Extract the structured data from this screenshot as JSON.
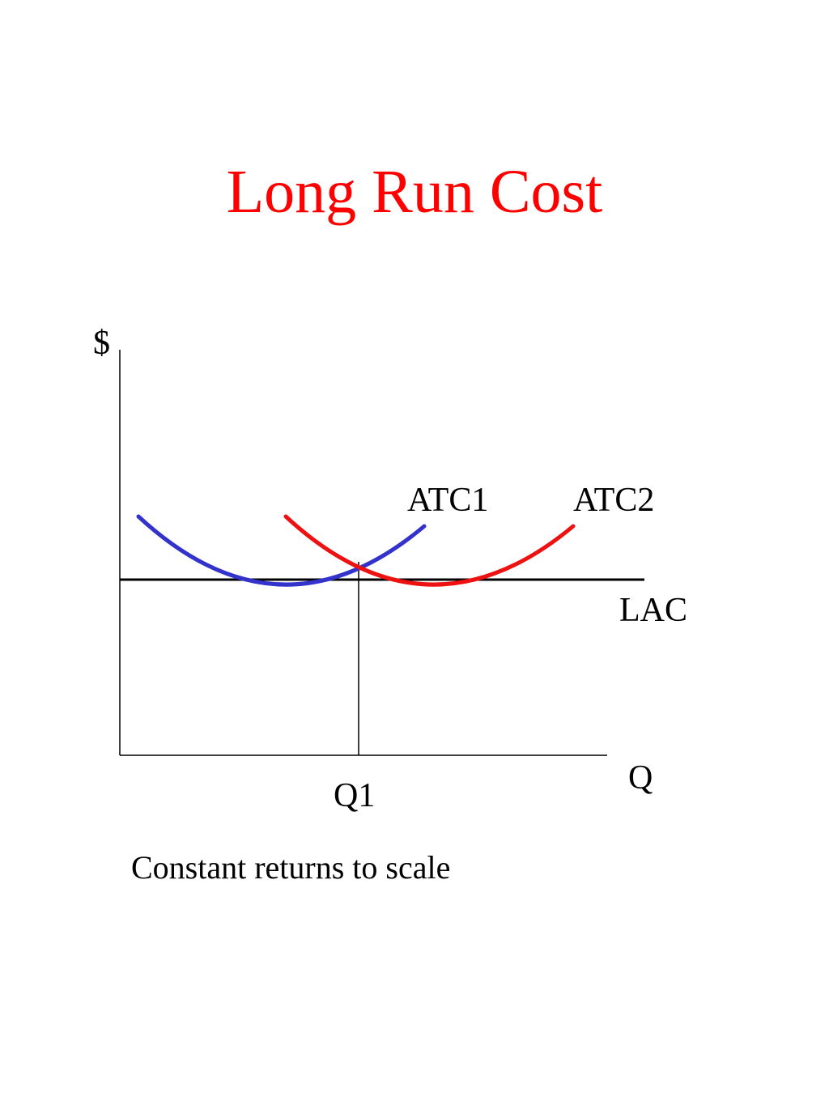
{
  "title": "Long Run Cost",
  "caption": "Constant returns to scale",
  "colors": {
    "title": "#ff0000",
    "atc1": "#3333cc",
    "atc2": "#ee1111",
    "axes": "#000000",
    "lac": "#000000"
  },
  "diagram": {
    "y_axis_label": "$",
    "x_axis_label": "Q",
    "quantity_marker": "Q1",
    "curves": [
      {
        "key": "atc1",
        "label": "ATC1",
        "shape": "U"
      },
      {
        "key": "atc2",
        "label": "ATC2",
        "shape": "U"
      }
    ],
    "lac_label": "LAC",
    "lac_shape": "horizontal-line"
  }
}
